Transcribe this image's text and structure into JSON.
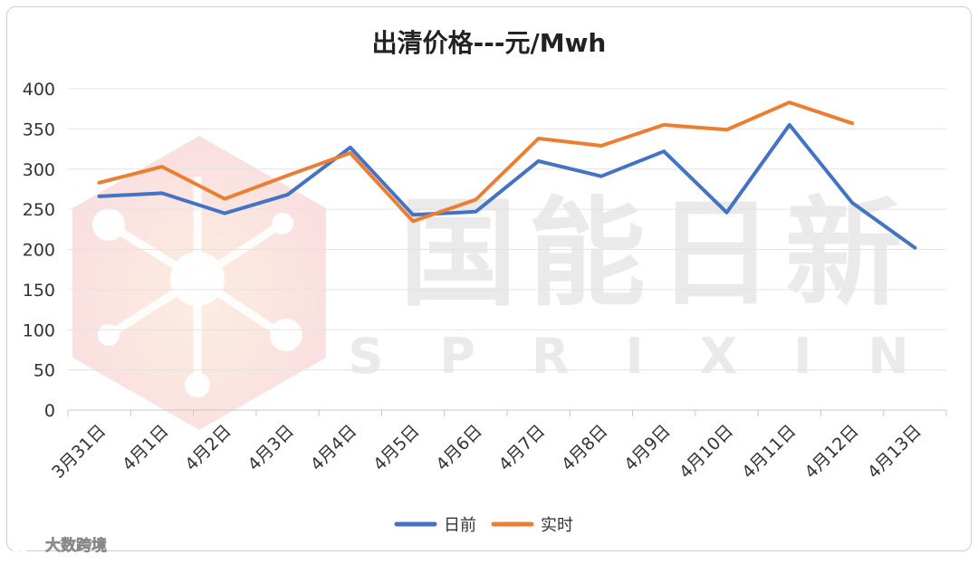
{
  "chart_data": {
    "type": "line",
    "title": "出清价格---元/Mwh",
    "xlabel": "",
    "ylabel": "",
    "categories": [
      "3月31日",
      "4月1日",
      "4月2日",
      "4月3日",
      "4月4日",
      "4月5日",
      "4月6日",
      "4月7日",
      "4月8日",
      "4月9日",
      "4月10日",
      "4月11日",
      "4月12日",
      "4月13日"
    ],
    "ylim": [
      0,
      400
    ],
    "yticks": [
      "400",
      "350",
      "300",
      "250",
      "200",
      "150",
      "100",
      "50",
      "0"
    ],
    "grid": true,
    "legend_position": "bottom",
    "series": [
      {
        "name": "日前",
        "color": "#4472c4",
        "values": [
          266,
          270,
          245,
          268,
          327,
          243,
          247,
          310,
          291,
          322,
          246,
          355,
          258,
          202
        ]
      },
      {
        "name": "实时",
        "color": "#ed7d31",
        "values": [
          283,
          303,
          263,
          292,
          320,
          235,
          262,
          338,
          329,
          355,
          349,
          383,
          357,
          null
        ]
      }
    ]
  },
  "watermark": {
    "brand_cn": "国能日新",
    "brand_en": "SPRIXIN",
    "corner_logo_text": "大数跨境"
  }
}
